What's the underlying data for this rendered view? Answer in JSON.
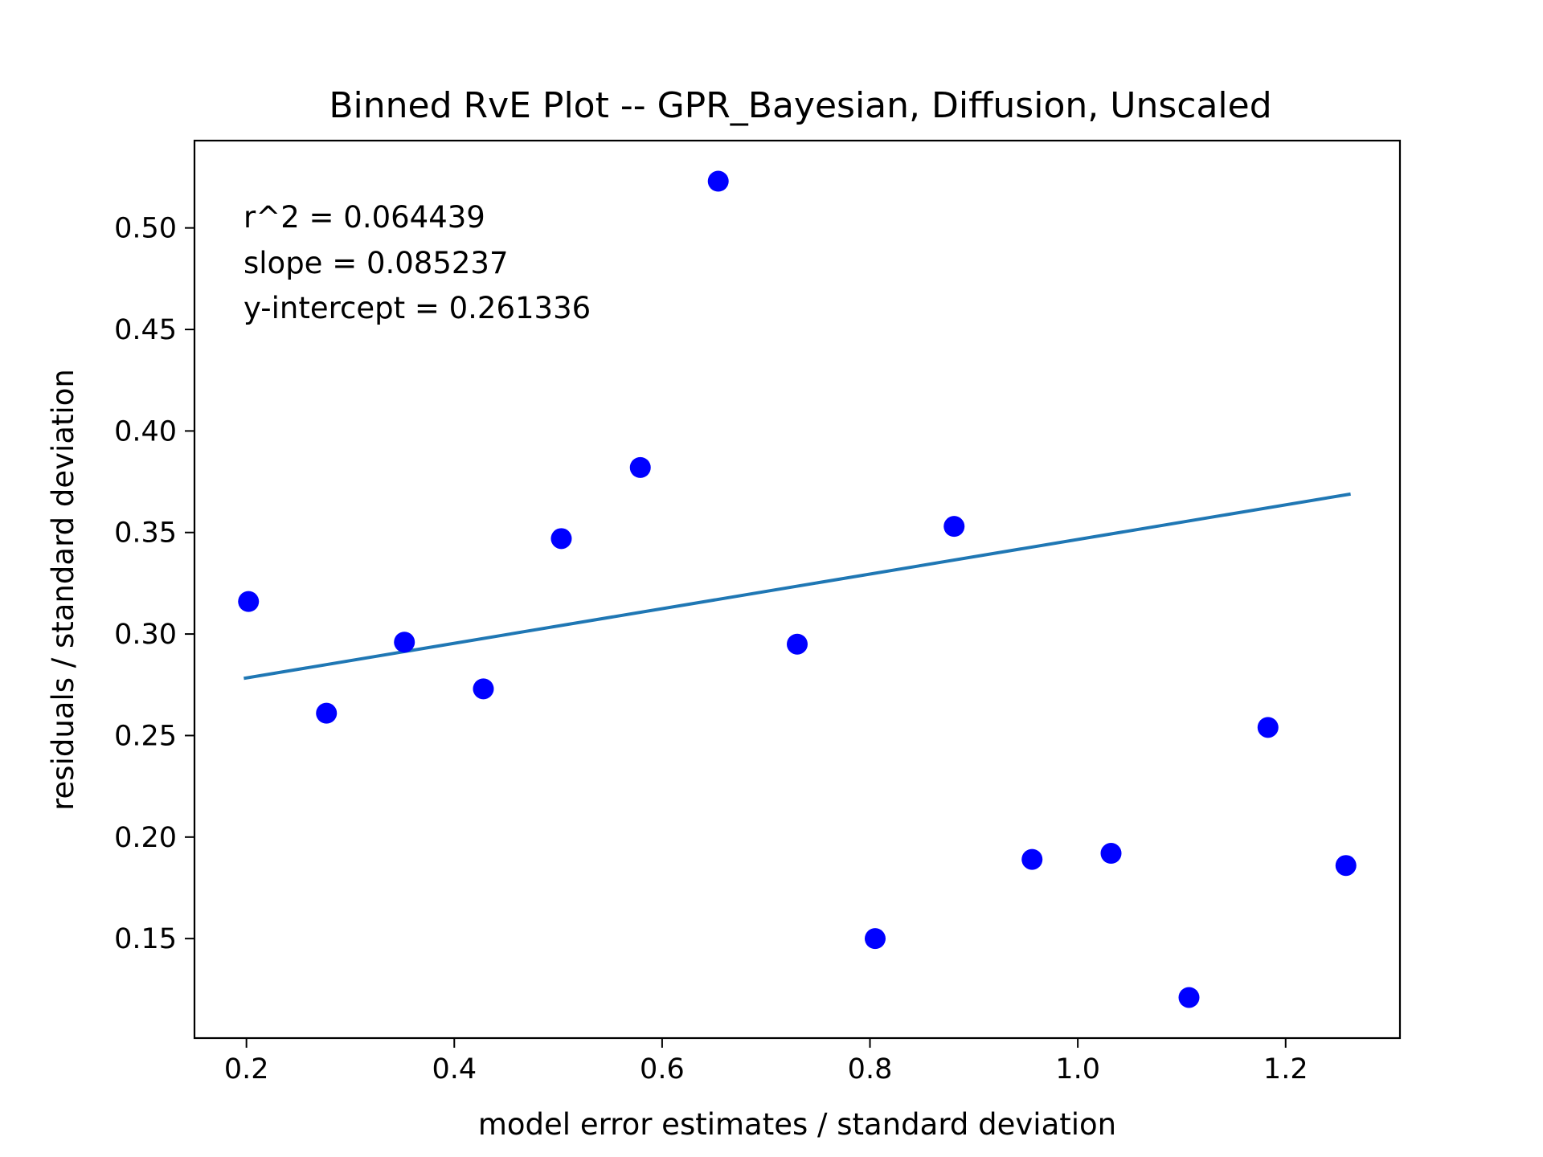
{
  "chart_data": {
    "type": "scatter",
    "title": "Binned RvE Plot -- GPR_Bayesian, Diffusion, Unscaled",
    "xlabel": "model error estimates / standard deviation",
    "ylabel": "residuals / standard deviation",
    "xlim": [
      0.15,
      1.31
    ],
    "ylim": [
      0.101,
      0.543
    ],
    "x_ticks": [
      0.2,
      0.4,
      0.6,
      0.8,
      1.0,
      1.2
    ],
    "x_tick_labels": [
      "0.2",
      "0.4",
      "0.6",
      "0.8",
      "1.0",
      "1.2"
    ],
    "y_ticks": [
      0.15,
      0.2,
      0.25,
      0.3,
      0.35,
      0.4,
      0.45,
      0.5
    ],
    "y_tick_labels": [
      "0.15",
      "0.20",
      "0.25",
      "0.30",
      "0.35",
      "0.40",
      "0.45",
      "0.50"
    ],
    "grid": false,
    "annotations": [
      "r^2 = 0.064439",
      "slope = 0.085237",
      "y-intercept = 0.261336"
    ],
    "points": {
      "color": "#0000ff",
      "x": [
        0.202,
        0.277,
        0.352,
        0.428,
        0.503,
        0.579,
        0.654,
        0.73,
        0.805,
        0.881,
        0.956,
        1.032,
        1.107,
        1.183,
        1.258
      ],
      "y": [
        0.316,
        0.261,
        0.296,
        0.273,
        0.347,
        0.382,
        0.523,
        0.295,
        0.15,
        0.353,
        0.189,
        0.192,
        0.121,
        0.254,
        0.186
      ]
    },
    "fit_line": {
      "color": "#1f77b4",
      "slope": 0.085237,
      "intercept": 0.261336,
      "x_range": [
        0.199,
        1.261
      ]
    }
  }
}
